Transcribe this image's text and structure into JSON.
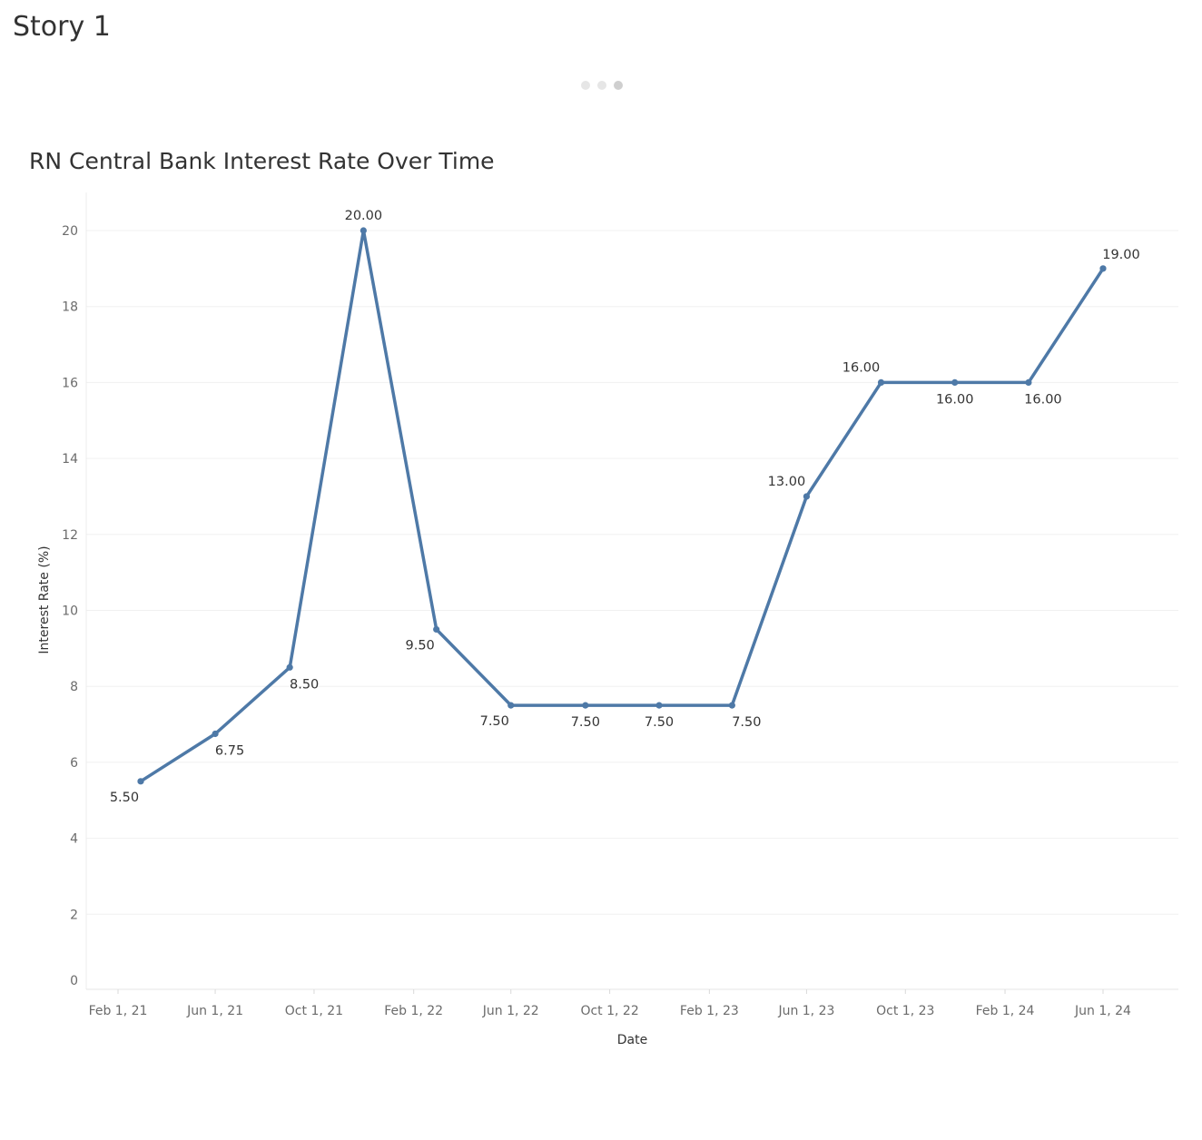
{
  "story": {
    "title": "Story 1",
    "pager": {
      "count": 3,
      "active_index": 2
    }
  },
  "chart_data": {
    "type": "line",
    "title": "RN Central Bank Interest Rate Over Time",
    "xlabel": "Date",
    "ylabel": "Interest Rate (%)",
    "ylim": [
      0,
      20
    ],
    "y_ticks": [
      0,
      2,
      4,
      6,
      8,
      10,
      12,
      14,
      16,
      18,
      20
    ],
    "x_ticks": [
      {
        "date": "2021-02-01",
        "label": "Feb 1, 21"
      },
      {
        "date": "2021-06-01",
        "label": "Jun 1, 21"
      },
      {
        "date": "2021-10-01",
        "label": "Oct 1, 21"
      },
      {
        "date": "2022-02-01",
        "label": "Feb 1, 22"
      },
      {
        "date": "2022-06-01",
        "label": "Jun 1, 22"
      },
      {
        "date": "2022-10-01",
        "label": "Oct 1, 22"
      },
      {
        "date": "2023-02-01",
        "label": "Feb 1, 23"
      },
      {
        "date": "2023-06-01",
        "label": "Jun 1, 23"
      },
      {
        "date": "2023-10-01",
        "label": "Oct 1, 23"
      },
      {
        "date": "2024-02-01",
        "label": "Feb 1, 24"
      },
      {
        "date": "2024-06-01",
        "label": "Jun 1, 24"
      }
    ],
    "grid": true,
    "line_color": "#4e79a7",
    "series": [
      {
        "points": [
          {
            "x": "2021-03-01",
            "y": 5.5,
            "label": "5.50",
            "label_pos": "below-left"
          },
          {
            "x": "2021-06-01",
            "y": 6.75,
            "label": "6.75",
            "label_pos": "below-right"
          },
          {
            "x": "2021-09-01",
            "y": 8.5,
            "label": "8.50",
            "label_pos": "below-right"
          },
          {
            "x": "2021-12-01",
            "y": 20.0,
            "label": "20.00",
            "label_pos": "above"
          },
          {
            "x": "2022-03-01",
            "y": 9.5,
            "label": "9.50",
            "label_pos": "below-left"
          },
          {
            "x": "2022-06-01",
            "y": 7.5,
            "label": "7.50",
            "label_pos": "below-left"
          },
          {
            "x": "2022-09-01",
            "y": 7.5,
            "label": "7.50",
            "label_pos": "below"
          },
          {
            "x": "2022-12-01",
            "y": 7.5,
            "label": "7.50",
            "label_pos": "below"
          },
          {
            "x": "2023-03-01",
            "y": 7.5,
            "label": "7.50",
            "label_pos": "below-right"
          },
          {
            "x": "2023-06-01",
            "y": 13.0,
            "label": "13.00",
            "label_pos": "above-left"
          },
          {
            "x": "2023-09-01",
            "y": 16.0,
            "label": "16.00",
            "label_pos": "above-left"
          },
          {
            "x": "2023-12-01",
            "y": 16.0,
            "label": "16.00",
            "label_pos": "below"
          },
          {
            "x": "2024-03-01",
            "y": 16.0,
            "label": "16.00",
            "label_pos": "below-right"
          },
          {
            "x": "2024-06-01",
            "y": 19.0,
            "label": "19.00",
            "label_pos": "above-right"
          }
        ]
      }
    ]
  }
}
